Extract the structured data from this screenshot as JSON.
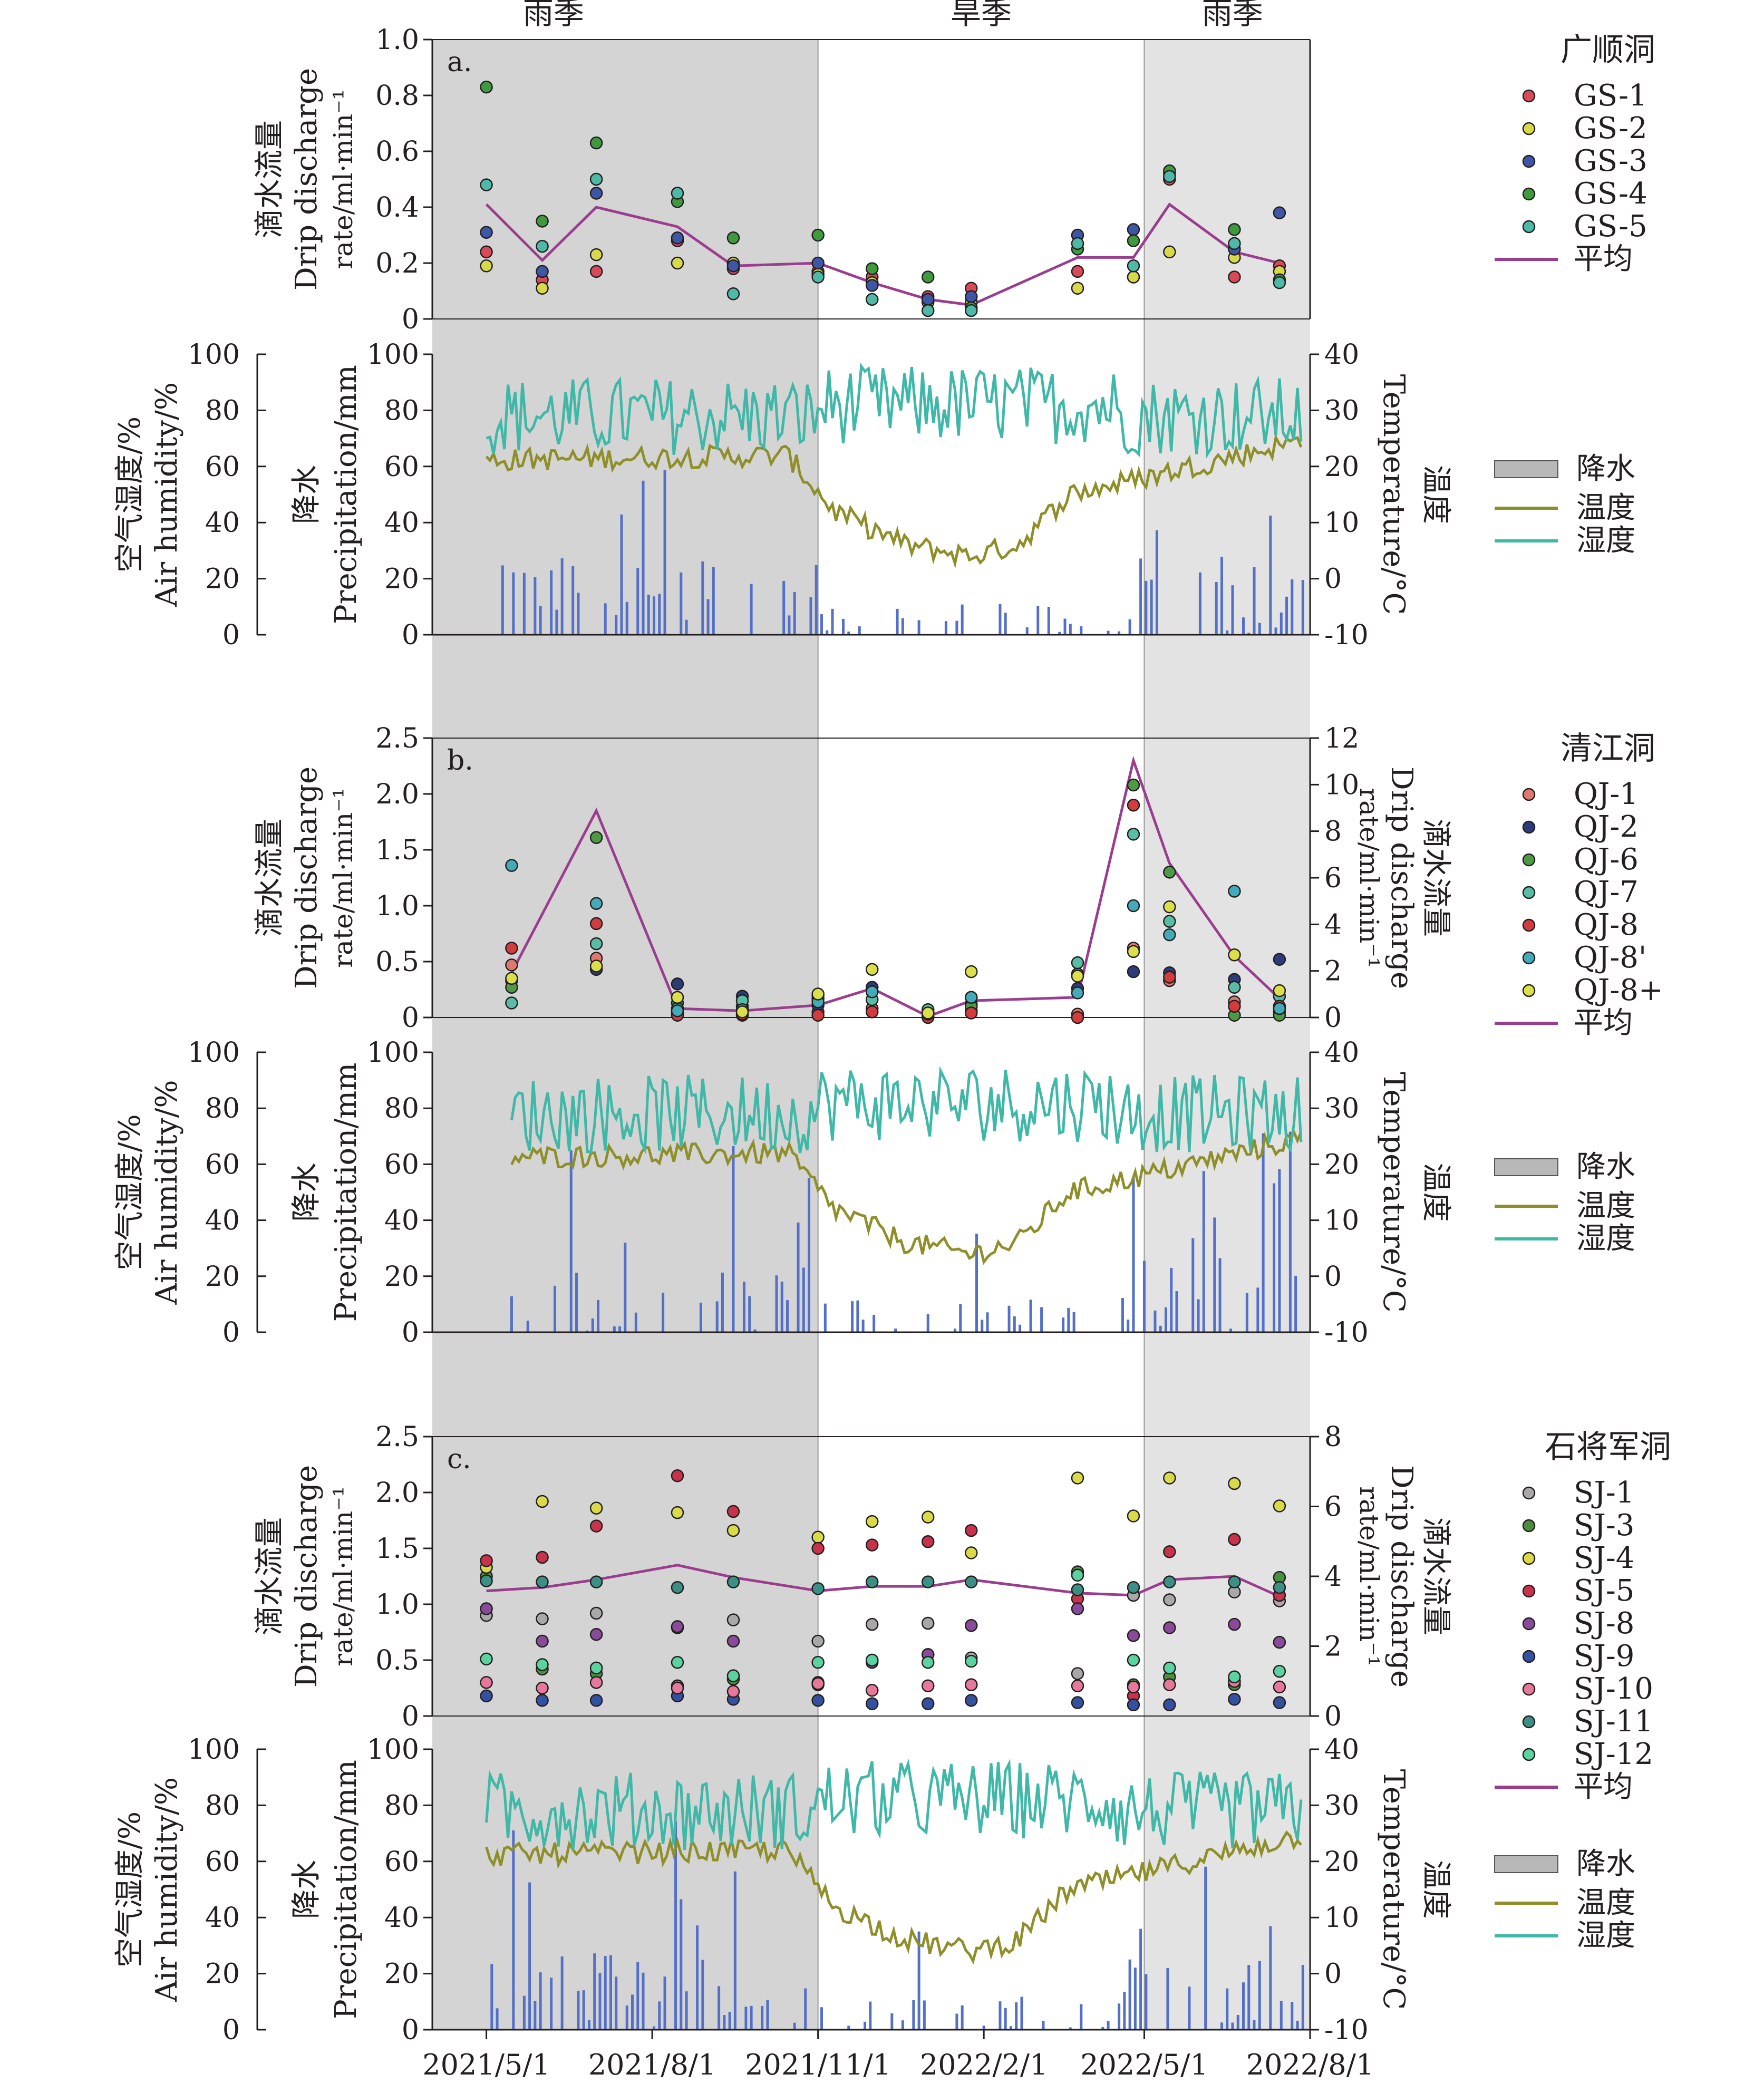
{
  "figure": {
    "season_labels": [
      "雨季",
      "旱季",
      "雨季"
    ],
    "x_axis": {
      "ticks": [
        "2021/5/1",
        "2021/8/1",
        "2021/11/1",
        "2022/2/1",
        "2022/5/1",
        "2022/8/1"
      ],
      "range": [
        "2021-04-01",
        "2022-08-01"
      ]
    },
    "seasons": [
      {
        "label": "雨季",
        "start": "2021-04-01",
        "end": "2021-11-01",
        "shade": "#d4d4d4"
      },
      {
        "label": "旱季",
        "start": "2021-11-01",
        "end": "2022-05-01",
        "shade": "#ffffff"
      },
      {
        "label": "雨季",
        "start": "2022-05-01",
        "end": "2022-08-01",
        "shade": "#e3e3e3"
      }
    ],
    "climate_legend": {
      "precip": "降水",
      "temp": "温度",
      "humidity": "湿度"
    },
    "colors": {
      "precip": "#5470c6",
      "temp": "#8f8f2a",
      "humidity": "#3fb8a8",
      "average": "#9b3d8f"
    }
  },
  "chart_data": [
    {
      "panel": "a.",
      "type": "scatter",
      "cave": "广顺洞",
      "ylabel_cn": "滴水流量",
      "ylabel_en": "Drip discharge",
      "ylabel_unit": "rate/ml·min⁻¹",
      "ylim": [
        0,
        1.0
      ],
      "yticks": [
        "1.0",
        "0.8",
        "0.6",
        "0.4",
        "0.2",
        "0"
      ],
      "dates": [
        "2021-05-01",
        "2021-06-01",
        "2021-07-01",
        "2021-08-15",
        "2021-09-15",
        "2021-11-01",
        "2021-12-01",
        "2022-01-01",
        "2022-01-25",
        "2022-03-25",
        "2022-04-25",
        "2022-05-15",
        "2022-06-20",
        "2022-07-15"
      ],
      "series": [
        {
          "name": "GS-1",
          "color": "#d84a57",
          "values": [
            0.24,
            0.14,
            0.17,
            0.28,
            0.18,
            0.17,
            0.15,
            0.08,
            0.11,
            0.17,
            0.15,
            0.5,
            0.15,
            0.19
          ]
        },
        {
          "name": "GS-2",
          "color": "#d7d94a",
          "values": [
            0.19,
            0.11,
            0.23,
            0.2,
            0.2,
            0.16,
            0.13,
            0.06,
            0.06,
            0.11,
            0.15,
            0.24,
            0.22,
            0.17
          ]
        },
        {
          "name": "GS-3",
          "color": "#3e56a6",
          "values": [
            0.31,
            0.17,
            0.45,
            0.29,
            0.19,
            0.2,
            0.12,
            0.07,
            0.08,
            0.3,
            0.32,
            0.52,
            0.25,
            0.38
          ]
        },
        {
          "name": "GS-4",
          "color": "#3f9a3e",
          "values": [
            0.83,
            0.35,
            0.63,
            0.42,
            0.29,
            0.3,
            0.18,
            0.15,
            0.04,
            0.25,
            0.28,
            0.53,
            0.32,
            0.14
          ]
        },
        {
          "name": "GS-5",
          "color": "#4fb9a8",
          "values": [
            0.48,
            0.26,
            0.5,
            0.45,
            0.09,
            0.15,
            0.07,
            0.03,
            0.03,
            0.27,
            0.19,
            0.51,
            0.27,
            0.13
          ]
        }
      ],
      "average": {
        "name": "平均",
        "values": [
          0.41,
          0.21,
          0.4,
          0.33,
          0.19,
          0.2,
          0.13,
          0.07,
          0.05,
          0.22,
          0.22,
          0.41,
          0.24,
          0.2
        ]
      },
      "climate": {
        "left_label_cn": "空气湿度/%",
        "left_label_en": "Air humidity/%",
        "precip_label_cn": "降水",
        "precip_label_en": "Precipitation/mm",
        "right_label_cn": "温度",
        "right_label_en": "Temperature/°C",
        "hum_ticks": [
          "100",
          "80",
          "60",
          "40",
          "20",
          "0"
        ],
        "precip_ticks": [
          "100",
          "80",
          "60",
          "40",
          "20",
          "0"
        ],
        "temp_ticks": [
          "40",
          "30",
          "20",
          "10",
          "0",
          "-10"
        ],
        "temp_range": [
          -10,
          40
        ]
      }
    },
    {
      "panel": "b.",
      "type": "scatter",
      "cave": "清江洞",
      "ylabel_cn": "滴水流量",
      "ylabel_en": "Drip discharge",
      "ylabel_unit": "rate/ml·min⁻¹",
      "ylim": [
        0,
        2.5
      ],
      "yticks": [
        "2.5",
        "2.0",
        "1.5",
        "1.0",
        "0.5",
        "0"
      ],
      "right_label_cn": "滴水流量",
      "right_label_en": "Drip discharge",
      "right_label_unit": "rate/ml·min⁻¹",
      "right_ylim": [
        0,
        12
      ],
      "right_yticks": [
        "12",
        "10",
        "8",
        "6",
        "4",
        "2",
        "0"
      ],
      "dates": [
        "2021-05-15",
        "2021-07-01",
        "2021-08-15",
        "2021-09-20",
        "2021-11-01",
        "2021-12-01",
        "2022-01-01",
        "2022-01-25",
        "2022-03-25",
        "2022-04-25",
        "2022-05-15",
        "2022-06-20",
        "2022-07-15"
      ],
      "series": [
        {
          "name": "QJ-1",
          "color": "#e07870",
          "values": [
            0.47,
            0.53,
            0.04,
            0.02,
            0.05,
            0.08,
            0.01,
            0.06,
            0.03,
            0.62,
            0.33,
            0.14,
            0.05
          ]
        },
        {
          "name": "QJ-2",
          "color": "#2d3b7a",
          "values": [
            0.33,
            0.43,
            0.3,
            0.19,
            0.11,
            0.27,
            0.03,
            0.12,
            0.26,
            0.41,
            0.4,
            0.34,
            0.52
          ]
        },
        {
          "name": "QJ-6",
          "color": "#4e9a44",
          "values": [
            0.27,
            1.61,
            0.13,
            0.1,
            0.2,
            0.23,
            0.05,
            0.1,
            0.39,
            2.08,
            1.3,
            0.02,
            0.02
          ]
        },
        {
          "name": "QJ-7",
          "color": "#59bca5",
          "values": [
            0.13,
            0.66,
            0.08,
            0.15,
            0.17,
            0.16,
            0.07,
            0.18,
            0.49,
            1.64,
            0.86,
            0.27,
            0.19
          ]
        },
        {
          "name": "QJ-8",
          "color": "#d33c3c",
          "values": [
            0.62,
            0.84,
            0.02,
            0.03,
            0.02,
            0.05,
            0.0,
            0.04,
            0.0,
            1.9,
            0.36,
            0.1,
            0.1
          ]
        },
        {
          "name": "QJ-8'",
          "color": "#42aab8",
          "values": [
            1.36,
            1.02,
            0.06,
            0.07,
            0.14,
            0.23,
            0.03,
            0.18,
            0.22,
            1.0,
            0.74,
            1.13,
            0.08
          ]
        },
        {
          "name": "QJ-8+",
          "color": "#dbe04a",
          "values": [
            0.35,
            0.46,
            0.18,
            0.05,
            0.21,
            0.43,
            0.04,
            0.41,
            0.37,
            0.59,
            0.99,
            0.56,
            0.24
          ]
        }
      ],
      "average": {
        "name": "平均",
        "values": [
          0.4,
          1.85,
          0.08,
          0.06,
          0.11,
          0.26,
          0.01,
          0.15,
          0.18,
          2.3,
          1.38,
          0.55,
          0.17
        ]
      },
      "climate": {
        "left_label_cn": "空气湿度/%",
        "left_label_en": "Air humidity/%",
        "precip_label_cn": "降水",
        "precip_label_en": "Precipitation/mm",
        "right_label_cn": "温度",
        "right_label_en": "Temperature/°C",
        "hum_ticks": [
          "100",
          "80",
          "60",
          "40",
          "20",
          "0"
        ],
        "precip_ticks": [
          "100",
          "80",
          "60",
          "40",
          "20",
          "0"
        ],
        "temp_ticks": [
          "40",
          "30",
          "20",
          "10",
          "0",
          "-10"
        ],
        "temp_range": [
          -10,
          40
        ]
      }
    },
    {
      "panel": "c.",
      "type": "scatter",
      "cave": "石将军洞",
      "ylabel_cn": "滴水流量",
      "ylabel_en": "Drip discharge",
      "ylabel_unit": "rate/ml·min⁻¹",
      "ylim": [
        0,
        2.5
      ],
      "yticks": [
        "2.5",
        "2.0",
        "1.5",
        "1.0",
        "0.5",
        "0"
      ],
      "right_label_cn": "滴水流量",
      "right_label_en": "Drip discharge",
      "right_label_unit": "rate/ml·min⁻¹",
      "right_ylim": [
        0,
        8
      ],
      "right_yticks": [
        "8",
        "6",
        "4",
        "2",
        "0"
      ],
      "dates": [
        "2021-05-01",
        "2021-06-01",
        "2021-07-01",
        "2021-08-15",
        "2021-09-15",
        "2021-11-01",
        "2021-12-01",
        "2022-01-01",
        "2022-01-25",
        "2022-03-25",
        "2022-04-25",
        "2022-05-15",
        "2022-06-20",
        "2022-07-15"
      ],
      "series": [
        {
          "name": "SJ-1",
          "color": "#a8a8a8",
          "values": [
            0.9,
            0.87,
            0.92,
            0.79,
            0.86,
            0.67,
            0.82,
            0.83,
            0.52,
            0.38,
            1.08,
            1.04,
            1.11,
            1.03
          ]
        },
        {
          "name": "SJ-3",
          "color": "#4a8f3e",
          "values": [
            1.25,
            0.42,
            0.38,
            0.27,
            0.33,
            0.28,
            0.5,
            0.55,
            0.28,
            1.29,
            0.28,
            0.35,
            0.28,
            1.24
          ]
        },
        {
          "name": "SJ-4",
          "color": "#dada48",
          "values": [
            1.33,
            1.92,
            1.86,
            1.82,
            1.66,
            1.6,
            1.74,
            1.78,
            1.46,
            2.13,
            1.79,
            2.13,
            2.08,
            1.88
          ]
        },
        {
          "name": "SJ-5",
          "color": "#c8324a",
          "values": [
            1.39,
            1.42,
            1.7,
            2.15,
            1.83,
            1.5,
            1.53,
            1.56,
            1.66,
            1.05,
            0.18,
            1.47,
            1.58,
            1.08
          ]
        },
        {
          "name": "SJ-8",
          "color": "#8a4a9a",
          "values": [
            0.96,
            0.67,
            0.73,
            0.8,
            0.67,
            0.3,
            0.48,
            0.55,
            0.81,
            0.96,
            0.72,
            0.79,
            0.82,
            0.66
          ]
        },
        {
          "name": "SJ-9",
          "color": "#3450a0",
          "values": [
            0.18,
            0.14,
            0.14,
            0.18,
            0.15,
            0.14,
            0.11,
            0.11,
            0.14,
            0.12,
            0.1,
            0.1,
            0.15,
            0.12
          ]
        },
        {
          "name": "SJ-10",
          "color": "#e8789a",
          "values": [
            0.3,
            0.25,
            0.3,
            0.25,
            0.22,
            0.29,
            0.23,
            0.27,
            0.28,
            0.27,
            0.26,
            0.28,
            0.31,
            0.26
          ]
        },
        {
          "name": "SJ-11",
          "color": "#3b8f84",
          "values": [
            1.21,
            1.2,
            1.2,
            1.15,
            1.2,
            1.14,
            1.2,
            1.2,
            1.2,
            1.13,
            1.15,
            1.2,
            1.2,
            1.15
          ]
        },
        {
          "name": "SJ-12",
          "color": "#5bd2a0",
          "values": [
            0.51,
            0.46,
            0.43,
            0.48,
            0.36,
            0.48,
            0.5,
            0.48,
            0.49,
            1.26,
            0.5,
            0.43,
            0.35,
            0.4
          ]
        }
      ],
      "average": {
        "name": "平均",
        "values": [
          1.12,
          1.15,
          1.22,
          1.35,
          1.24,
          1.12,
          1.16,
          1.16,
          1.22,
          1.1,
          1.08,
          1.22,
          1.25,
          1.07
        ]
      },
      "climate": {
        "left_label_cn": "空气湿度/%",
        "left_label_en": "Air humidity/%",
        "precip_label_cn": "降水",
        "precip_label_en": "Precipitation/mm",
        "right_label_cn": "温度",
        "right_label_en": "Temperature/°C",
        "hum_ticks": [
          "100",
          "80",
          "60",
          "40",
          "20",
          "0"
        ],
        "precip_ticks": [
          "100",
          "80",
          "60",
          "40",
          "20",
          "0"
        ],
        "temp_ticks": [
          "40",
          "30",
          "20",
          "10",
          "0",
          "-10"
        ],
        "temp_range": [
          -10,
          40
        ]
      }
    }
  ]
}
